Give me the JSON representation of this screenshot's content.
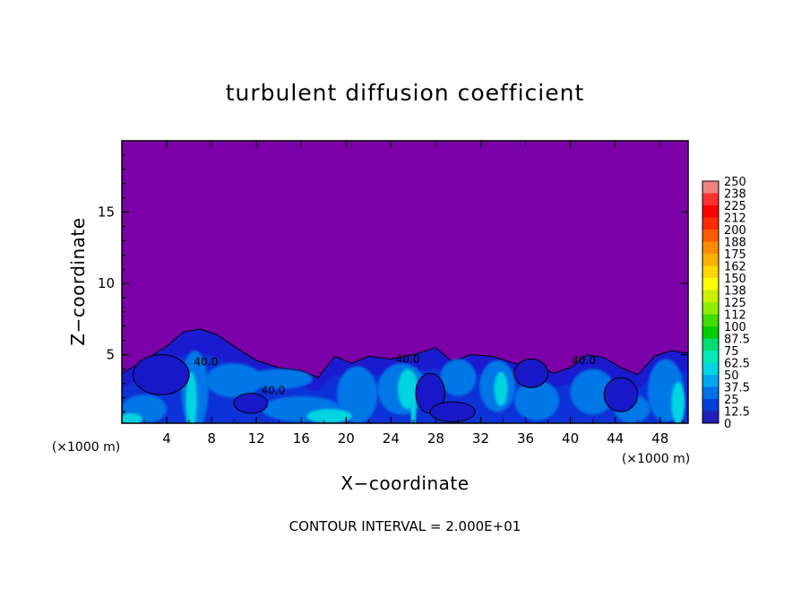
{
  "chart_data": {
    "type": "heatmap",
    "title": "turbulent diffusion coefficient",
    "xlabel": "X−coordinate",
    "ylabel": "Z−coordinate",
    "x_unit_label": "(×1000 m)",
    "y_unit_label": "(×1000 m)",
    "xlim": [
      0,
      50.5
    ],
    "ylim": [
      0.2,
      20
    ],
    "x_ticks": [
      4,
      8,
      12,
      16,
      20,
      24,
      28,
      32,
      36,
      40,
      44,
      48
    ],
    "y_ticks": [
      5,
      10,
      15
    ],
    "footer": "CONTOUR INTERVAL = 2.000E+01",
    "background_value": 0,
    "contour_labels": [
      {
        "text": "40.0",
        "x": 7.5,
        "z": 4.5
      },
      {
        "text": "40.0",
        "x": 13.5,
        "z": 2.5
      },
      {
        "text": "40.0",
        "x": 25.5,
        "z": 4.7
      },
      {
        "text": "40.0",
        "x": 41.2,
        "z": 4.6
      }
    ],
    "colorbar": {
      "labels": [
        "250",
        "238",
        "225",
        "212",
        "200",
        "188",
        "175",
        "162",
        "150",
        "138",
        "125",
        "112",
        "100",
        "87.5",
        "75",
        "62.5",
        "50",
        "37.5",
        "25",
        "12.5",
        "0"
      ],
      "colors": [
        "#f08080",
        "#ff3030",
        "#ff0000",
        "#ff2a00",
        "#ff5a00",
        "#ff8c00",
        "#ffb000",
        "#ffd700",
        "#ffff00",
        "#c8f000",
        "#90ee00",
        "#40dd00",
        "#00cc00",
        "#00dd70",
        "#00e8b4",
        "#00d4e0",
        "#00a8f0",
        "#0070e8",
        "#0040d8",
        "#2020b8",
        "#7b00a8"
      ]
    },
    "colors": {
      "background_field": "#7b00a8",
      "low_turbulence": "#1a1ad0",
      "mid_turbulence": "#0077e6",
      "high_turbulence": "#00d4e0"
    },
    "turbulent_layer": {
      "description_units": "km",
      "top_profile": [
        {
          "x": 0,
          "z": 3.7
        },
        {
          "x": 2,
          "z": 4.6
        },
        {
          "x": 4,
          "z": 5.6
        },
        {
          "x": 5.5,
          "z": 6.6
        },
        {
          "x": 7,
          "z": 6.8
        },
        {
          "x": 8.5,
          "z": 6.4
        },
        {
          "x": 10,
          "z": 5.6
        },
        {
          "x": 12,
          "z": 4.6
        },
        {
          "x": 14,
          "z": 4.1
        },
        {
          "x": 16,
          "z": 3.9
        },
        {
          "x": 17.5,
          "z": 3.4
        },
        {
          "x": 19,
          "z": 4.9
        },
        {
          "x": 20.5,
          "z": 4.4
        },
        {
          "x": 22,
          "z": 4.9
        },
        {
          "x": 24,
          "z": 4.7
        },
        {
          "x": 26,
          "z": 5.0
        },
        {
          "x": 28,
          "z": 5.5
        },
        {
          "x": 29.5,
          "z": 4.5
        },
        {
          "x": 31,
          "z": 5.0
        },
        {
          "x": 33,
          "z": 4.9
        },
        {
          "x": 35,
          "z": 4.4
        },
        {
          "x": 37,
          "z": 4.3
        },
        {
          "x": 38.5,
          "z": 3.7
        },
        {
          "x": 40,
          "z": 4.1
        },
        {
          "x": 41.5,
          "z": 5.0
        },
        {
          "x": 43,
          "z": 4.8
        },
        {
          "x": 44.5,
          "z": 4.1
        },
        {
          "x": 46,
          "z": 3.6
        },
        {
          "x": 47.5,
          "z": 4.9
        },
        {
          "x": 49,
          "z": 5.3
        },
        {
          "x": 50.5,
          "z": 5.1
        }
      ]
    }
  }
}
